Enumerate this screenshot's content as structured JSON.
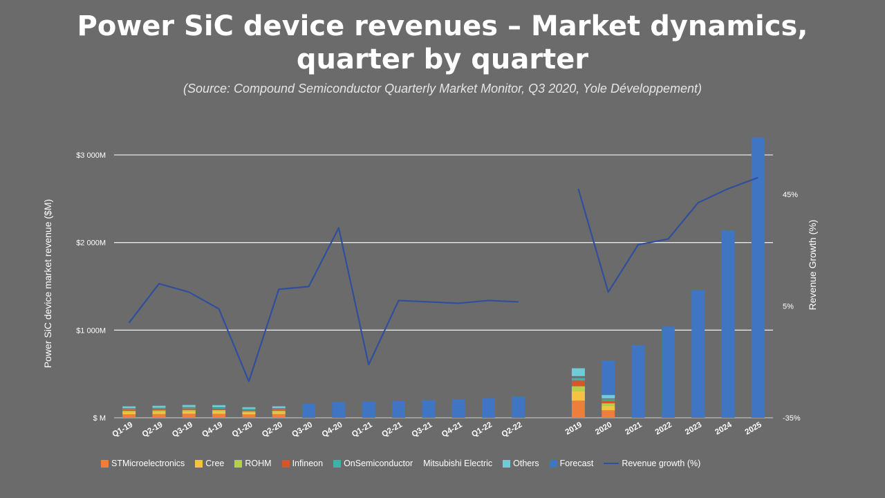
{
  "title_line1": "Power SiC device revenues – Market dynamics,",
  "title_line2": "quarter by quarter",
  "subtitle": "(Source: Compound Semiconductor Quarterly Market Monitor, Q3 2020, Yole Développement)",
  "chart_data": {
    "type": "bar",
    "ylabel": "Power SiC device market revenue ($M)",
    "y2label": "Revenue Growth (%)",
    "yticks": [
      "$ M",
      "$1 000M",
      "$2 000M",
      "$3 000M"
    ],
    "ylim": [
      0,
      3000
    ],
    "y2ticks": [
      "-35%",
      "5%",
      "45%"
    ],
    "y2lim": [
      -35,
      60
    ],
    "grid": true,
    "legend_position": "bottom",
    "categories": [
      "Q1-19",
      "Q2-19",
      "Q3-19",
      "Q4-19",
      "Q1-20",
      "Q2-20",
      "Q3-20",
      "Q4-20",
      "Q1-21",
      "Q2-21",
      "Q3-21",
      "Q4-21",
      "Q1-22",
      "Q2-22",
      "",
      "2019",
      "2020",
      "2021",
      "2022",
      "2023",
      "2024",
      "2025"
    ],
    "series": [
      {
        "name": "STMicroelectronics",
        "color": "#ef7d3c",
        "values": [
          40,
          42,
          45,
          44,
          38,
          42,
          null,
          null,
          null,
          null,
          null,
          null,
          null,
          null,
          null,
          195,
          85,
          null,
          null,
          null,
          null,
          null
        ]
      },
      {
        "name": "Cree",
        "color": "#f5c242",
        "values": [
          25,
          26,
          27,
          27,
          22,
          24,
          null,
          null,
          null,
          null,
          null,
          null,
          null,
          null,
          null,
          105,
          50,
          null,
          null,
          null,
          null,
          null
        ]
      },
      {
        "name": "ROHM",
        "color": "#b6cf4a",
        "values": [
          15,
          16,
          17,
          17,
          14,
          15,
          null,
          null,
          null,
          null,
          null,
          null,
          null,
          null,
          null,
          60,
          30,
          null,
          null,
          null,
          null,
          null
        ]
      },
      {
        "name": "Infineon",
        "color": "#d2572a",
        "values": [
          15,
          16,
          17,
          16,
          13,
          15,
          null,
          null,
          null,
          null,
          null,
          null,
          null,
          null,
          null,
          65,
          30,
          null,
          null,
          null,
          null,
          null
        ]
      },
      {
        "name": "OnSemiconductor",
        "color": "#3fb2a8",
        "values": [
          8,
          8,
          9,
          9,
          7,
          8,
          null,
          null,
          null,
          null,
          null,
          null,
          null,
          null,
          null,
          30,
          15,
          null,
          null,
          null,
          null,
          null
        ]
      },
      {
        "name": "Mitsubishi Electric",
        "color": "#6b6b6b",
        "values": [
          5,
          5,
          6,
          6,
          5,
          5,
          null,
          null,
          null,
          null,
          null,
          null,
          null,
          null,
          null,
          20,
          10,
          null,
          null,
          null,
          null,
          null
        ]
      },
      {
        "name": "Others",
        "color": "#6fcbd5",
        "values": [
          22,
          24,
          25,
          25,
          21,
          22,
          null,
          null,
          null,
          null,
          null,
          null,
          null,
          null,
          null,
          90,
          40,
          null,
          null,
          null,
          null,
          null
        ]
      },
      {
        "name": "Forecast",
        "color": "#3f75c3",
        "values": [
          null,
          null,
          null,
          null,
          null,
          null,
          160,
          180,
          185,
          190,
          200,
          210,
          225,
          245,
          null,
          null,
          395,
          830,
          1040,
          1460,
          2140,
          3200
        ]
      }
    ],
    "line_series": {
      "name": "Revenue growth (%)",
      "color": "#2f4f9c",
      "axis": "y2",
      "segments": [
        {
          "categories": [
            "Q1-19",
            "Q2-19",
            "Q3-19",
            "Q4-19",
            "Q1-20",
            "Q2-20",
            "Q3-20",
            "Q4-20",
            "Q1-21",
            "Q2-21",
            "Q3-21",
            "Q4-21",
            "Q1-22",
            "Q2-22"
          ],
          "values": [
            -1,
            13,
            10,
            4,
            -22,
            11,
            12,
            33,
            -16,
            7,
            6.5,
            6,
            7,
            6.5
          ]
        },
        {
          "categories": [
            "2019",
            "2020",
            "2021",
            "2022",
            "2023",
            "2024",
            "2025"
          ],
          "values": [
            47,
            10,
            27,
            29,
            42,
            47,
            51
          ]
        }
      ]
    }
  }
}
